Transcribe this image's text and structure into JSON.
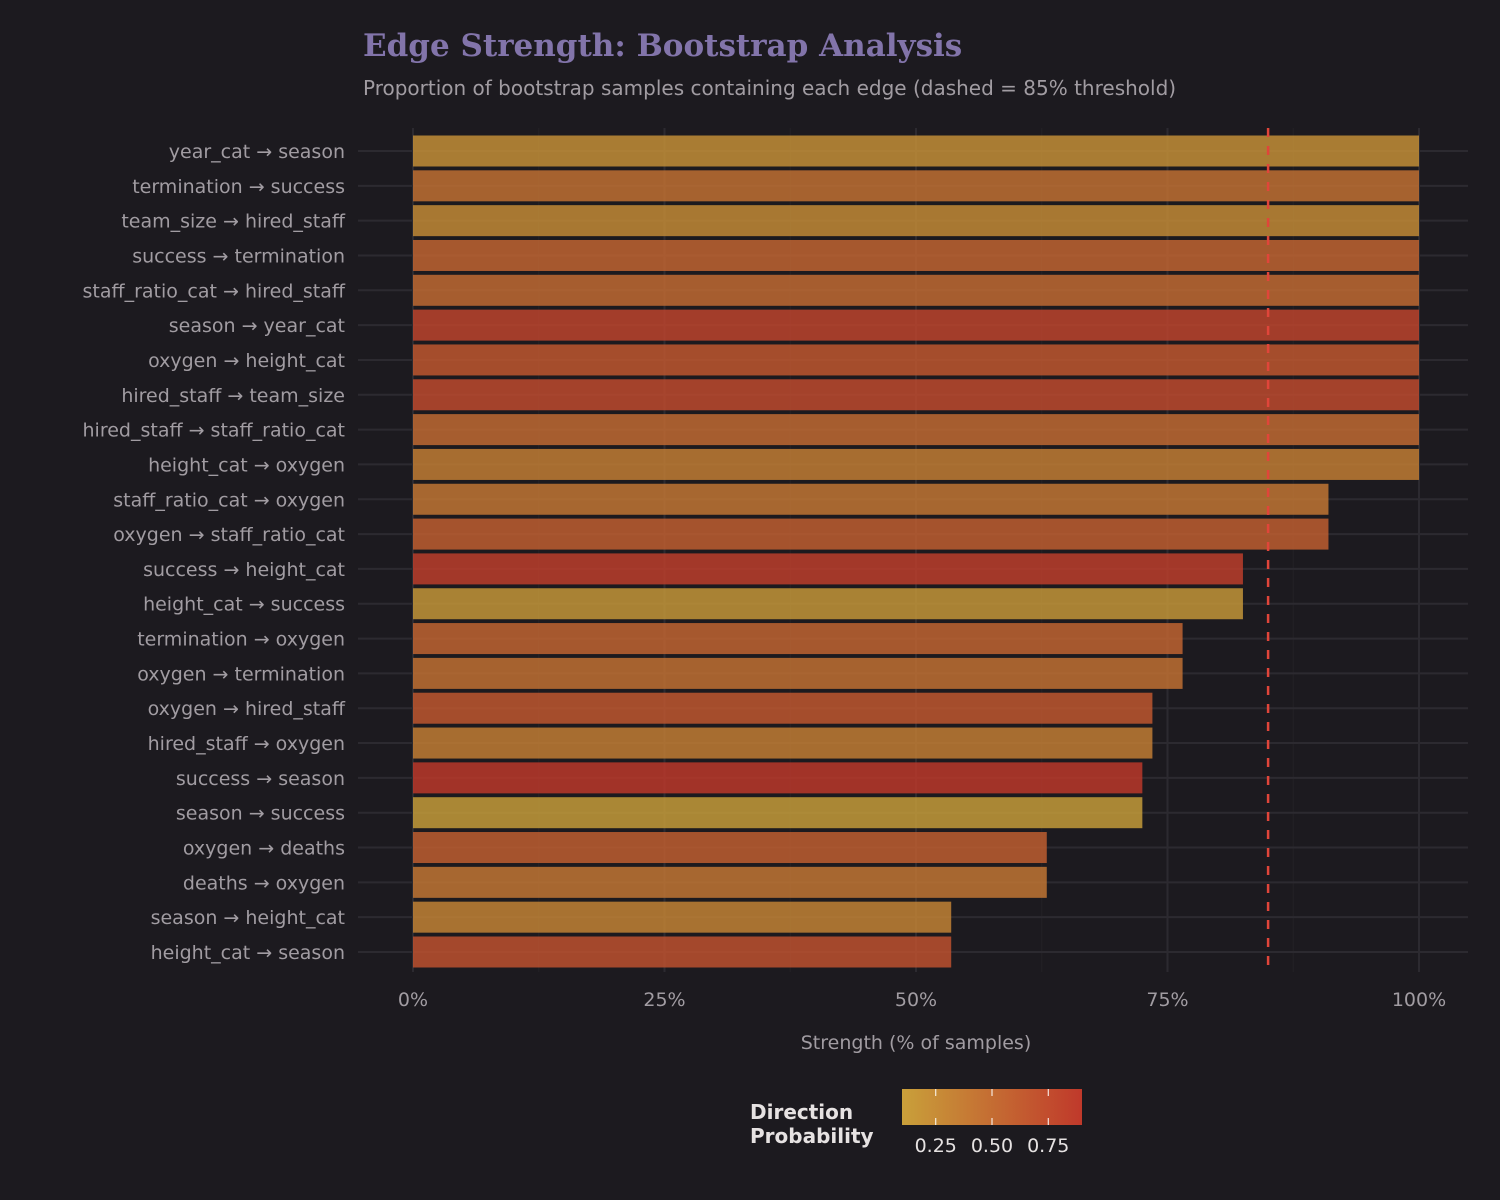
{
  "chart_data": {
    "type": "bar",
    "orientation": "horizontal",
    "title": "Edge Strength: Bootstrap Analysis",
    "subtitle": "Proportion of bootstrap samples containing each edge (dashed = 85% threshold)",
    "xlabel": "Strength (% of samples)",
    "ylabel": "",
    "xlim": [
      0,
      1
    ],
    "x_ticks": [
      "0%",
      "25%",
      "50%",
      "75%",
      "100%"
    ],
    "x_tick_values": [
      0,
      0.25,
      0.5,
      0.75,
      1
    ],
    "threshold": 0.85,
    "grid": true,
    "categories": [
      "year_cat → season",
      "termination → success",
      "team_size → hired_staff",
      "success → termination",
      "staff_ratio_cat → hired_staff",
      "season → year_cat",
      "oxygen → height_cat",
      "hired_staff → team_size",
      "hired_staff → staff_ratio_cat",
      "height_cat → oxygen",
      "staff_ratio_cat → oxygen",
      "oxygen → staff_ratio_cat",
      "success → height_cat",
      "height_cat → success",
      "termination → oxygen",
      "oxygen → termination",
      "oxygen → hired_staff",
      "hired_staff → oxygen",
      "success → season",
      "season → success",
      "oxygen → deaths",
      "deaths → oxygen",
      "season → height_cat",
      "height_cat → season"
    ],
    "values": [
      1,
      1,
      1,
      1,
      1,
      1,
      1,
      1,
      1,
      1,
      0.91,
      0.91,
      0.825,
      0.825,
      0.765,
      0.765,
      0.735,
      0.735,
      0.725,
      0.725,
      0.63,
      0.63,
      0.535,
      0.535
    ],
    "direction_probability": [
      0.2,
      0.45,
      0.25,
      0.55,
      0.5,
      0.8,
      0.65,
      0.75,
      0.5,
      0.35,
      0.4,
      0.6,
      0.85,
      0.15,
      0.55,
      0.45,
      0.65,
      0.35,
      0.9,
      0.1,
      0.6,
      0.4,
      0.3,
      0.7
    ],
    "legend": {
      "title": "Direction Probability",
      "position": "bottom",
      "ticks": [
        "0.25",
        "0.50",
        "0.75"
      ],
      "tick_values": [
        0.25,
        0.5,
        0.75
      ],
      "range": [
        0.1,
        0.9
      ],
      "color_low": "#c9a03a",
      "color_high": "#c0392b"
    },
    "threshold_color": "#e0453a"
  }
}
